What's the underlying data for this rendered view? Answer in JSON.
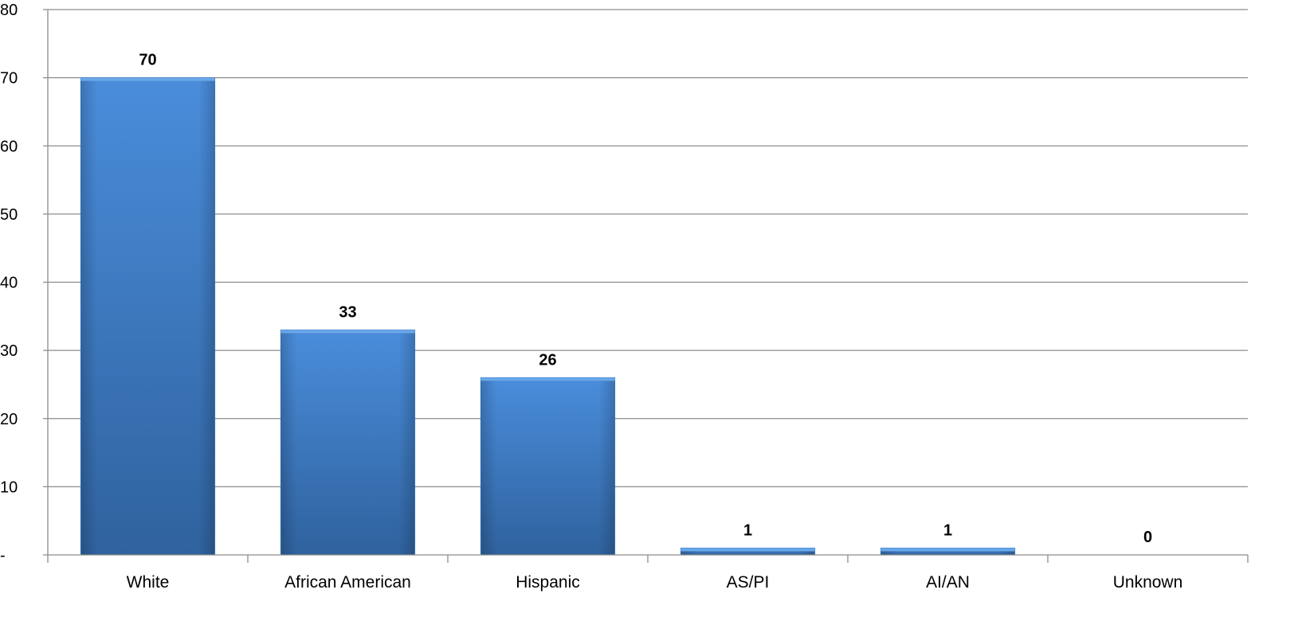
{
  "chart_data": {
    "type": "bar",
    "categories": [
      "White",
      "African American",
      "Hispanic",
      "AS/PI",
      "AI/AN",
      "Unknown"
    ],
    "values": [
      70,
      33,
      26,
      1,
      1,
      0
    ],
    "data_labels": [
      "70",
      "33",
      "26",
      "1",
      "1",
      "0"
    ],
    "ylim": [
      0,
      80
    ],
    "yticks": [
      0,
      10,
      20,
      30,
      40,
      50,
      60,
      70,
      80
    ],
    "ytick_labels": [
      "-",
      "10",
      "20",
      "30",
      "40",
      "50",
      "60",
      "70",
      "80"
    ],
    "grid": true,
    "legend": "none",
    "bar_color": "#3c7dc4"
  }
}
